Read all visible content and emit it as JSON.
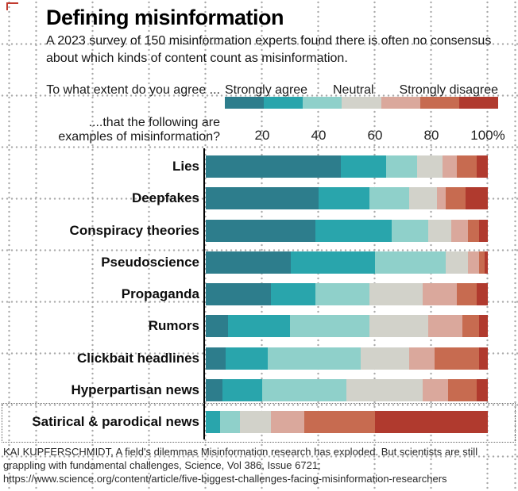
{
  "header": {
    "title": "Defining misinformation",
    "subtitle": "A 2023 survey of 150 misinformation experts found there is often no consensus about which kinds of content count as misinformation."
  },
  "legend": {
    "prompt": "To what extent do you agree ...",
    "labels": [
      "Strongly agree",
      "Neutral",
      "Strongly disagree"
    ]
  },
  "axis": {
    "prompt_line1": "....that the following are",
    "prompt_line2": "examples of misinformation?"
  },
  "chart_data": {
    "type": "bar",
    "stacked": true,
    "orientation": "horizontal",
    "unit": "percent of experts",
    "xlim": [
      0,
      100
    ],
    "x_ticks": [
      "20",
      "40",
      "60",
      "80",
      "100%"
    ],
    "tick_values": [
      20,
      40,
      60,
      80,
      100
    ],
    "scale_points": 7,
    "legend_anchors": [
      "Strongly agree",
      "Neutral",
      "Strongly disagree"
    ],
    "colors": [
      "#2d7d8c",
      "#29a5ac",
      "#8fd0ca",
      "#d2d2ca",
      "#daa89c",
      "#c76b50",
      "#b03a2e"
    ],
    "categories": [
      "Lies",
      "Deepfakes",
      "Conspiracy theories",
      "Pseudoscience",
      "Propaganda",
      "Rumors",
      "Clickbait headlines",
      "Hyperpartisan news",
      "Satirical & parodical news"
    ],
    "values": [
      [
        48,
        16,
        11,
        9,
        5,
        7,
        4
      ],
      [
        40,
        18,
        14,
        10,
        3,
        7,
        8
      ],
      [
        39,
        27,
        13,
        8,
        6,
        4,
        3
      ],
      [
        30,
        30,
        25,
        8,
        4,
        2,
        1
      ],
      [
        23,
        16,
        19,
        19,
        12,
        7,
        4
      ],
      [
        8,
        22,
        28,
        21,
        12,
        6,
        3
      ],
      [
        7,
        15,
        33,
        17,
        9,
        16,
        3
      ],
      [
        6,
        14,
        30,
        27,
        9,
        10,
        4
      ],
      [
        0,
        5,
        7,
        11,
        12,
        25,
        40
      ]
    ],
    "highlighted_category": "Satirical & parodical news"
  },
  "footer": {
    "line1": "KAI KUPFERSCHMIDT, A field's dilemmas Misinformation research has exploded. But scientists are still",
    "line2": "grappling with fundamental challenges, Science, Vol 386, Issue 6721;",
    "line3": "https://www.science.org/content/article/five-biggest-challenges-facing-misinformation-researchers"
  }
}
